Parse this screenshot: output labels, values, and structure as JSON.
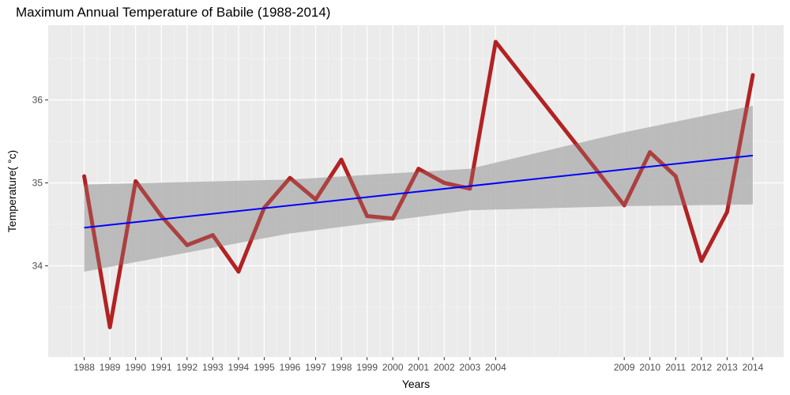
{
  "chart_data": {
    "type": "line",
    "title": "Maximum Annual Temperature of Babile (1988-2014)",
    "xlabel": "Years",
    "ylabel": "Temperature( °c)",
    "xlim": [
      1986.6,
      2015.2
    ],
    "ylim": [
      32.9,
      36.9
    ],
    "y_ticks": [
      34,
      35,
      36
    ],
    "x_tick_labels": [
      "1988",
      "1989",
      "1990",
      "1991",
      "1992",
      "1993",
      "1994",
      "1995",
      "1996",
      "1997",
      "1998",
      "1999",
      "2000",
      "2001",
      "2002",
      "2003",
      "2004",
      "2009",
      "2010",
      "2011",
      "2012",
      "2013",
      "2014"
    ],
    "x": [
      1988,
      1989,
      1990,
      1991,
      1992,
      1993,
      1994,
      1995,
      1996,
      1997,
      1998,
      1999,
      2000,
      2001,
      2002,
      2003,
      2004,
      2009,
      2010,
      2011,
      2012,
      2013,
      2014
    ],
    "series": [
      {
        "values": [
          35.08,
          33.26,
          35.02,
          34.6,
          34.25,
          34.37,
          33.93,
          34.7,
          35.06,
          34.8,
          35.28,
          34.6,
          34.57,
          35.17,
          35.0,
          34.93,
          36.7,
          34.73,
          35.37,
          35.08,
          34.06,
          34.65,
          36.3
        ],
        "color": "#b22222"
      }
    ],
    "trend": {
      "method": "linear regression",
      "start": [
        1988,
        34.46
      ],
      "end": [
        2014,
        35.33
      ],
      "color": "#0000ff"
    },
    "confidence_band": {
      "x": [
        1988,
        1996,
        2003,
        2009,
        2014
      ],
      "lower": [
        33.93,
        34.39,
        34.67,
        34.72,
        34.74
      ],
      "upper": [
        34.98,
        35.04,
        35.17,
        35.61,
        35.93
      ],
      "color": "#c0c0c0"
    },
    "grid": true,
    "legend": "none"
  }
}
